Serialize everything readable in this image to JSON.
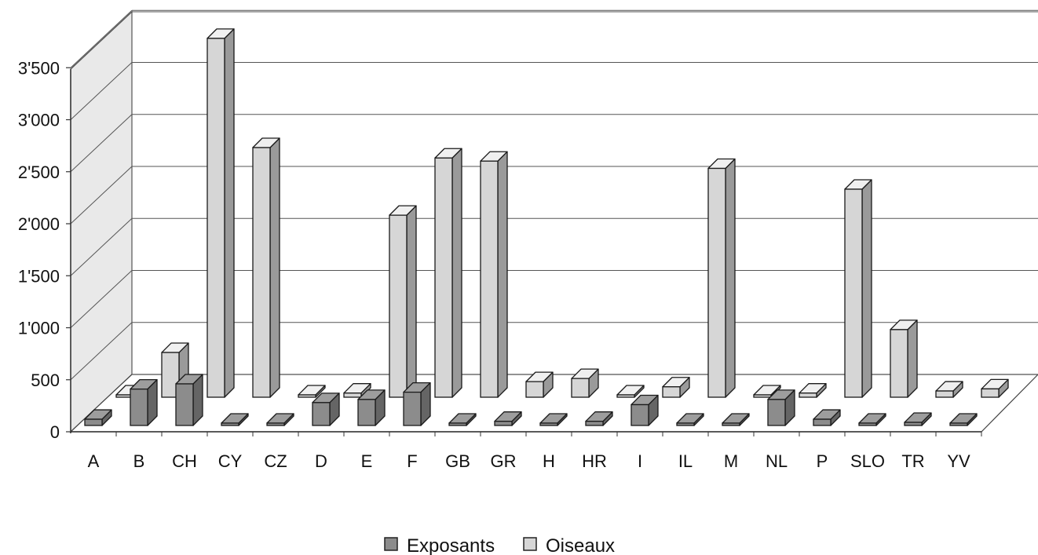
{
  "chart_data": {
    "type": "bar",
    "title": "",
    "xlabel": "",
    "ylabel": "",
    "ylim": [
      0,
      4000
    ],
    "yticks": [
      "0",
      "500",
      "1'000",
      "1'500",
      "2'000",
      "2'500",
      "3'000",
      "3'500"
    ],
    "categories": [
      "A",
      "B",
      "CH",
      "CY",
      "CZ",
      "D",
      "E",
      "F",
      "GB",
      "GR",
      "H",
      "HR",
      "I",
      "IL",
      "M",
      "NL",
      "P",
      "SLO",
      "TR",
      "YV"
    ],
    "series": [
      {
        "name": "Exposants",
        "color": "#8c8c8c",
        "values": [
          60,
          350,
          400,
          0,
          0,
          220,
          250,
          320,
          10,
          40,
          0,
          40,
          200,
          0,
          0,
          250,
          60,
          0,
          30,
          0
        ]
      },
      {
        "name": "Oiseaux",
        "color": "#d6d6d6",
        "values": [
          0,
          430,
          3450,
          2400,
          0,
          40,
          1750,
          2300,
          2270,
          150,
          180,
          0,
          100,
          2200,
          20,
          40,
          2000,
          650,
          60,
          80
        ]
      }
    ],
    "grid": true,
    "legend_position": "bottom"
  }
}
